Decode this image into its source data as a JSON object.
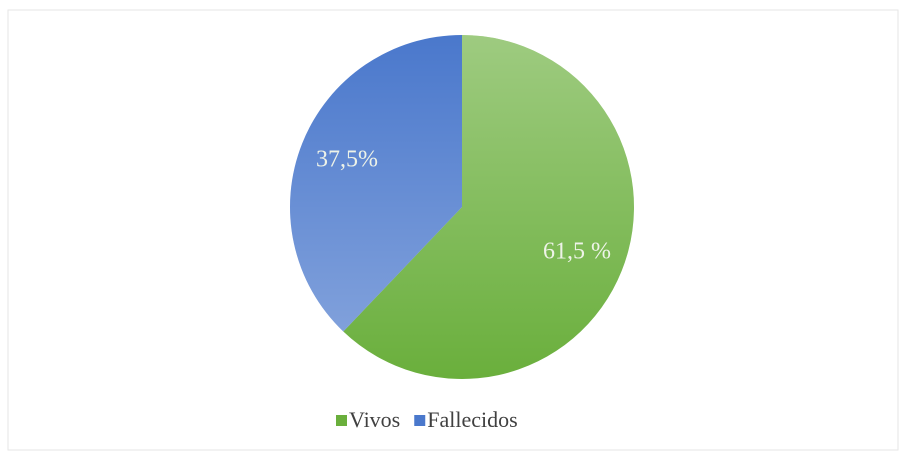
{
  "chart_data": {
    "type": "pie",
    "categories": [
      "Vivos",
      "Fallecidos"
    ],
    "values": [
      61.5,
      37.5
    ],
    "value_labels": [
      "61,5 %",
      "37,5%"
    ],
    "colors": [
      "#6aaf3c",
      "#4a78cc"
    ],
    "legend": "bottom"
  }
}
